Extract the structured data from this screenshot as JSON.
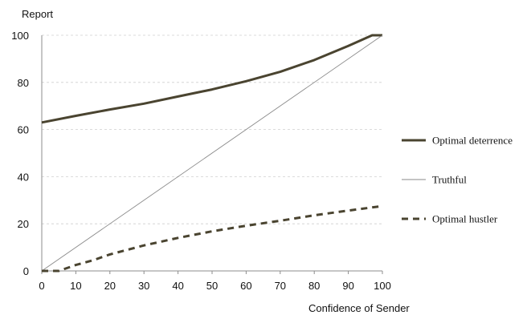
{
  "chart_data": {
    "type": "line",
    "ylabel": "Report",
    "xlabel": "Confidence of Sender",
    "xlim": [
      0,
      100
    ],
    "ylim": [
      0,
      100
    ],
    "x_ticks": [
      "0",
      "10",
      "20",
      "30",
      "40",
      "50",
      "60",
      "70",
      "80",
      "90",
      "100"
    ],
    "y_ticks": [
      "0",
      "20",
      "40",
      "60",
      "80",
      "100"
    ],
    "grid": "horizontal dashed",
    "legend_position": "right",
    "series": [
      {
        "name": "Optimal deterrence",
        "style": "solid-thick",
        "color": "#4a4430",
        "x": [
          0,
          10,
          20,
          30,
          40,
          50,
          60,
          70,
          80,
          90,
          97,
          100
        ],
        "y": [
          63,
          65.8,
          68.5,
          71,
          74,
          77,
          80.5,
          84.5,
          89.5,
          95.5,
          100,
          100
        ]
      },
      {
        "name": "Truthful",
        "style": "solid-thin",
        "color": "#8a8a8a",
        "x": [
          0,
          100
        ],
        "y": [
          0,
          100
        ]
      },
      {
        "name": "Optimal hustler",
        "style": "dashed-thick",
        "color": "#4a4430",
        "x": [
          0,
          5,
          10,
          15,
          20,
          30,
          40,
          50,
          60,
          70,
          80,
          90,
          100
        ],
        "y": [
          0,
          0,
          2.5,
          4.5,
          7,
          10.8,
          14,
          16.8,
          19.2,
          21.3,
          23.6,
          25.6,
          27.5
        ]
      }
    ]
  }
}
